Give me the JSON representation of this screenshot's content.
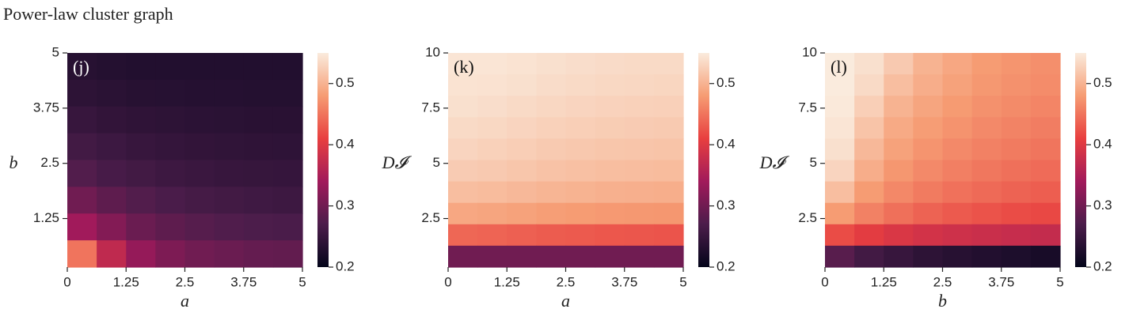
{
  "title": "Power-law cluster graph",
  "chart_data": [
    {
      "type": "heatmap",
      "panel_label": "(j)",
      "xlabel": "a",
      "ylabel": "b",
      "xlim": [
        0,
        5
      ],
      "ylim": [
        0.15,
        5
      ],
      "xticks": [
        0,
        1.25,
        2.5,
        3.75,
        5
      ],
      "yticks": [
        1.25,
        2.5,
        3.75,
        5
      ],
      "clim": [
        0.2,
        0.55
      ],
      "cticks": [
        0.2,
        0.3,
        0.4,
        0.5
      ],
      "colormap": [
        "#03051a",
        "#4c1d4b",
        "#a11a5b",
        "#e83f3f",
        "#f69c73",
        "#faebdd"
      ],
      "z": [
        [
          0.235,
          0.232,
          0.23,
          0.23,
          0.23,
          0.23,
          0.23,
          0.23
        ],
        [
          0.24,
          0.237,
          0.235,
          0.234,
          0.233,
          0.233,
          0.232,
          0.232
        ],
        [
          0.25,
          0.245,
          0.242,
          0.24,
          0.238,
          0.237,
          0.236,
          0.236
        ],
        [
          0.26,
          0.255,
          0.25,
          0.247,
          0.245,
          0.243,
          0.242,
          0.241
        ],
        [
          0.275,
          0.265,
          0.26,
          0.256,
          0.253,
          0.25,
          0.249,
          0.248
        ],
        [
          0.3,
          0.285,
          0.275,
          0.268,
          0.263,
          0.26,
          0.258,
          0.256
        ],
        [
          0.34,
          0.315,
          0.295,
          0.285,
          0.278,
          0.273,
          0.27,
          0.268
        ],
        [
          0.45,
          0.37,
          0.33,
          0.31,
          0.3,
          0.295,
          0.29,
          0.288
        ]
      ]
    },
    {
      "type": "heatmap",
      "panel_label": "(k)",
      "xlabel": "a",
      "ylabel": "D𝓘",
      "xlim": [
        0,
        5
      ],
      "ylim": [
        0.3,
        10
      ],
      "xticks": [
        0,
        1.25,
        2.5,
        3.75,
        5
      ],
      "yticks": [
        2.5,
        5,
        7.5,
        10
      ],
      "clim": [
        0.2,
        0.55
      ],
      "cticks": [
        0.2,
        0.3,
        0.4,
        0.5
      ],
      "colormap": [
        "#03051a",
        "#4c1d4b",
        "#a11a5b",
        "#e83f3f",
        "#f69c73",
        "#faebdd"
      ],
      "z": [
        [
          0.545,
          0.545,
          0.543,
          0.54,
          0.538,
          0.536,
          0.535,
          0.535
        ],
        [
          0.543,
          0.542,
          0.54,
          0.537,
          0.535,
          0.533,
          0.532,
          0.531
        ],
        [
          0.54,
          0.538,
          0.535,
          0.532,
          0.53,
          0.528,
          0.527,
          0.526
        ],
        [
          0.535,
          0.533,
          0.53,
          0.527,
          0.525,
          0.523,
          0.522,
          0.521
        ],
        [
          0.53,
          0.527,
          0.524,
          0.521,
          0.519,
          0.517,
          0.516,
          0.515
        ],
        [
          0.522,
          0.52,
          0.517,
          0.514,
          0.512,
          0.51,
          0.509,
          0.508
        ],
        [
          0.51,
          0.508,
          0.505,
          0.502,
          0.5,
          0.498,
          0.497,
          0.496
        ],
        [
          0.49,
          0.488,
          0.485,
          0.482,
          0.48,
          0.478,
          0.477,
          0.476
        ],
        [
          0.44,
          0.438,
          0.435,
          0.432,
          0.43,
          0.428,
          0.427,
          0.426
        ],
        [
          0.3,
          0.3,
          0.3,
          0.3,
          0.3,
          0.3,
          0.3,
          0.3
        ]
      ]
    },
    {
      "type": "heatmap",
      "panel_label": "(l)",
      "xlabel": "b",
      "ylabel": "D𝓘",
      "xlim": [
        0,
        5
      ],
      "ylim": [
        0.3,
        10
      ],
      "xticks": [
        0,
        1.25,
        2.5,
        3.75,
        5
      ],
      "yticks": [
        2.5,
        5,
        7.5,
        10
      ],
      "clim": [
        0.2,
        0.55
      ],
      "cticks": [
        0.2,
        0.3,
        0.4,
        0.5
      ],
      "colormap": [
        "#03051a",
        "#4c1d4b",
        "#a11a5b",
        "#e83f3f",
        "#f69c73",
        "#faebdd"
      ],
      "z": [
        [
          0.55,
          0.54,
          0.52,
          0.5,
          0.49,
          0.48,
          0.475,
          0.47
        ],
        [
          0.55,
          0.535,
          0.51,
          0.495,
          0.485,
          0.477,
          0.472,
          0.468
        ],
        [
          0.548,
          0.525,
          0.5,
          0.488,
          0.479,
          0.472,
          0.467,
          0.463
        ],
        [
          0.545,
          0.515,
          0.492,
          0.481,
          0.473,
          0.466,
          0.461,
          0.457
        ],
        [
          0.54,
          0.505,
          0.485,
          0.474,
          0.466,
          0.46,
          0.455,
          0.451
        ],
        [
          0.53,
          0.495,
          0.476,
          0.466,
          0.458,
          0.452,
          0.447,
          0.443
        ],
        [
          0.51,
          0.48,
          0.465,
          0.455,
          0.448,
          0.442,
          0.437,
          0.433
        ],
        [
          0.48,
          0.46,
          0.447,
          0.437,
          0.43,
          0.425,
          0.42,
          0.417
        ],
        [
          0.42,
          0.405,
          0.395,
          0.388,
          0.383,
          0.379,
          0.376,
          0.374
        ],
        [
          0.28,
          0.26,
          0.25,
          0.24,
          0.235,
          0.23,
          0.225,
          0.22
        ]
      ]
    }
  ]
}
